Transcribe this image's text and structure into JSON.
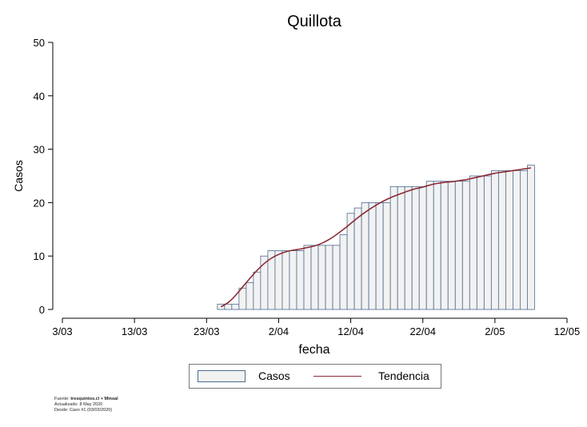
{
  "chart_data": {
    "type": "bar",
    "title": "Quillota",
    "xlabel": "fecha",
    "ylabel": "Casos",
    "ylim": [
      0,
      50
    ],
    "yticks": [
      0,
      10,
      20,
      30,
      40,
      50
    ],
    "xlim": [
      "2020-03-03",
      "2020-05-12"
    ],
    "xticks": [
      "3/03",
      "13/03",
      "23/03",
      "2/04",
      "12/04",
      "22/04",
      "2/05",
      "12/05"
    ],
    "x": [
      "2020-03-25",
      "2020-03-26",
      "2020-03-27",
      "2020-03-28",
      "2020-03-29",
      "2020-03-30",
      "2020-03-31",
      "2020-04-01",
      "2020-04-02",
      "2020-04-03",
      "2020-04-04",
      "2020-04-05",
      "2020-04-06",
      "2020-04-07",
      "2020-04-08",
      "2020-04-09",
      "2020-04-10",
      "2020-04-11",
      "2020-04-12",
      "2020-04-13",
      "2020-04-14",
      "2020-04-15",
      "2020-04-16",
      "2020-04-17",
      "2020-04-18",
      "2020-04-19",
      "2020-04-20",
      "2020-04-21",
      "2020-04-22",
      "2020-04-23",
      "2020-04-24",
      "2020-04-25",
      "2020-04-26",
      "2020-04-27",
      "2020-04-28",
      "2020-04-29",
      "2020-04-30",
      "2020-05-01",
      "2020-05-02",
      "2020-05-03",
      "2020-05-04",
      "2020-05-05",
      "2020-05-06",
      "2020-05-07"
    ],
    "series": [
      {
        "name": "Casos",
        "values": [
          1,
          1,
          1,
          4,
          5,
          7,
          10,
          11,
          11,
          11,
          11,
          11,
          12,
          12,
          12,
          12,
          12,
          14,
          18,
          19,
          20,
          20,
          20,
          20,
          23,
          23,
          23,
          23,
          23,
          24,
          24,
          24,
          24,
          24,
          24,
          25,
          25,
          25,
          26,
          26,
          26,
          26,
          26,
          27
        ]
      },
      {
        "name": "Tendencia",
        "values": [
          0.5,
          1.3,
          2.6,
          4.2,
          5.8,
          7.3,
          8.6,
          9.6,
          10.3,
          10.8,
          11.1,
          11.3,
          11.6,
          11.9,
          12.4,
          13.1,
          14.0,
          15.0,
          16.1,
          17.2,
          18.2,
          19.1,
          19.9,
          20.6,
          21.2,
          21.7,
          22.2,
          22.6,
          22.9,
          23.3,
          23.6,
          23.8,
          23.9,
          24.1,
          24.3,
          24.6,
          24.9,
          25.2,
          25.5,
          25.7,
          25.9,
          26.1,
          26.3,
          26.5
        ]
      }
    ],
    "legend_position": "bottom",
    "colors": {
      "bar_fill": "#f2f2f2",
      "bar_stroke": "#4d6b8f",
      "trend": "#8c2a35"
    }
  },
  "legend": {
    "bars_label": "Casos",
    "line_label": "Tendencia"
  },
  "footer": {
    "line1_prefix": "Fuente: ",
    "line1_source": "tresquintos.cl + Minsal",
    "line2": "Actualizado: 8 May 2020",
    "line3": "Desde: Caso #1  (03/03/2020)"
  }
}
